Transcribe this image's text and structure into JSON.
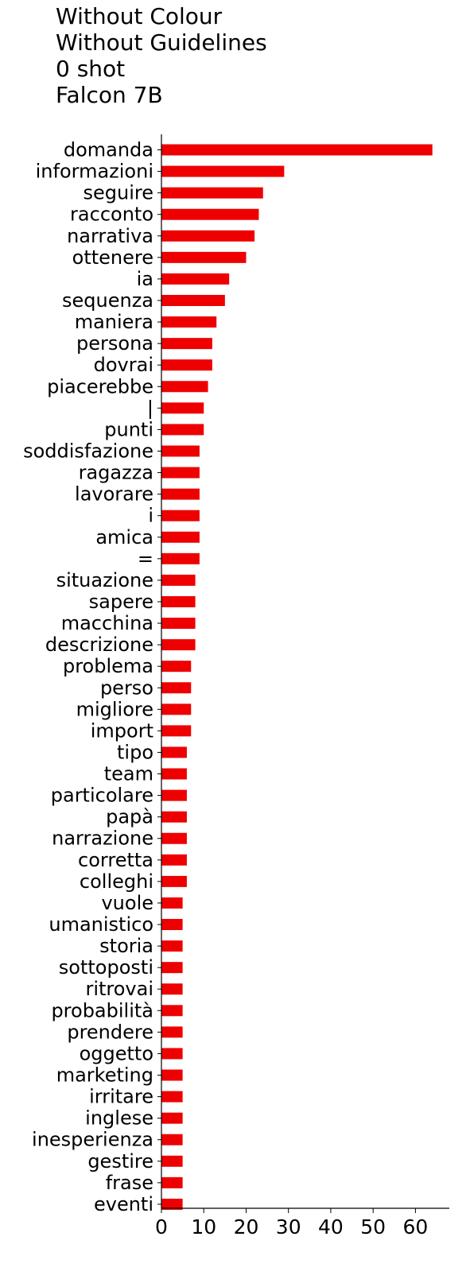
{
  "chart_data": {
    "type": "bar",
    "orientation": "horizontal",
    "title": [
      "Without Colour",
      "Without Guidelines",
      "0 shot",
      "Falcon 7B"
    ],
    "xlabel": "",
    "ylabel": "",
    "xlim": [
      0,
      68
    ],
    "xticks": [
      0,
      10,
      20,
      30,
      40,
      50,
      60
    ],
    "grid": false,
    "legend": "none",
    "bar_color": "#ee0000",
    "categories": [
      "domanda",
      "informazioni",
      "seguire",
      "racconto",
      "narrativa",
      "ottenere",
      "ia",
      "sequenza",
      "maniera",
      "persona",
      "dovrai",
      "piacerebbe",
      "|",
      "punti",
      "soddisfazione",
      "ragazza",
      "lavorare",
      "i",
      "amica",
      "=",
      "situazione",
      "sapere",
      "macchina",
      "descrizione",
      "problema",
      "perso",
      "migliore",
      "import",
      "tipo",
      "team",
      "particolare",
      "papà",
      "narrazione",
      "corretta",
      "colleghi",
      "vuole",
      "umanistico",
      "storia",
      "sottoposti",
      "ritrovai",
      "probabilità",
      "prendere",
      "oggetto",
      "marketing",
      "irritare",
      "inglese",
      "inesperienza",
      "gestire",
      "frase",
      "eventi"
    ],
    "values": [
      64,
      29,
      24,
      23,
      22,
      20,
      16,
      15,
      13,
      12,
      12,
      11,
      10,
      10,
      9,
      9,
      9,
      9,
      9,
      9,
      8,
      8,
      8,
      8,
      7,
      7,
      7,
      7,
      6,
      6,
      6,
      6,
      6,
      6,
      6,
      5,
      5,
      5,
      5,
      5,
      5,
      5,
      5,
      5,
      5,
      5,
      5,
      5,
      5,
      5
    ]
  }
}
